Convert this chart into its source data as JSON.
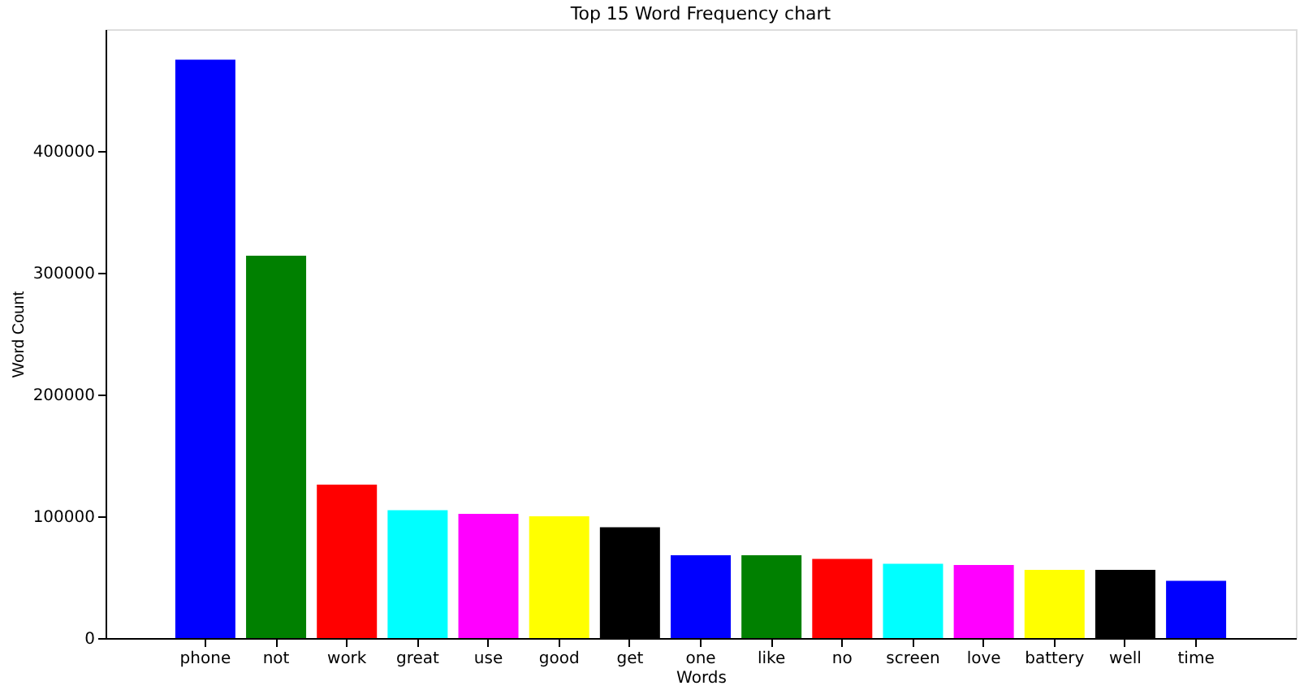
{
  "chart_data": {
    "type": "bar",
    "title": "Top 15 Word Frequency chart",
    "xlabel": "Words",
    "ylabel": "Word Count",
    "categories": [
      "phone",
      "not",
      "work",
      "great",
      "use",
      "good",
      "get",
      "one",
      "like",
      "no",
      "screen",
      "love",
      "battery",
      "well",
      "time"
    ],
    "values": [
      475000,
      314000,
      126000,
      105000,
      102000,
      100000,
      91000,
      68000,
      68000,
      65000,
      61000,
      60000,
      56000,
      56000,
      47000
    ],
    "colors": [
      "#0000ff",
      "#008000",
      "#ff0000",
      "#00ffff",
      "#ff00ff",
      "#ffff00",
      "#000000",
      "#0000ff",
      "#008000",
      "#ff0000",
      "#00ffff",
      "#ff00ff",
      "#ffff00",
      "#000000",
      "#0000ff"
    ],
    "ylim": [
      0,
      500000
    ],
    "yticks": [
      0,
      100000,
      200000,
      300000,
      400000
    ],
    "grid": false,
    "legend": false
  }
}
